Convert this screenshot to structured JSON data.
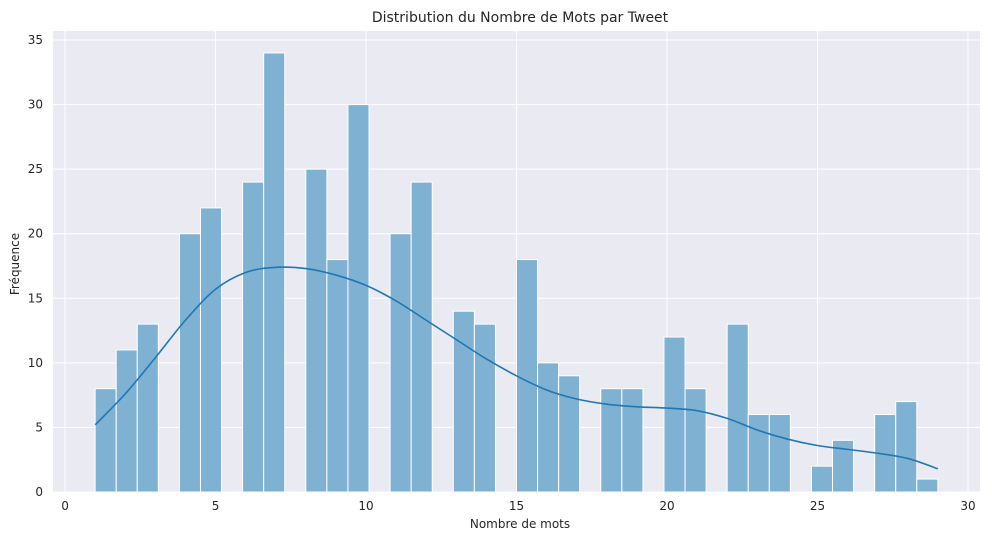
{
  "chart_data": {
    "type": "bar",
    "title": "Distribution du Nombre de Mots par Tweet",
    "xlabel": "Nombre de mots",
    "ylabel": "Fréquence",
    "xlim": [
      -0.4,
      30.4
    ],
    "ylim": [
      0,
      35.7
    ],
    "xticks": [
      0,
      5,
      10,
      15,
      20,
      25,
      30
    ],
    "yticks": [
      0,
      5,
      10,
      15,
      20,
      25,
      30,
      35
    ],
    "grid": true,
    "bin_width": 0.7,
    "bins": [
      {
        "x0": 1.0,
        "value": 8
      },
      {
        "x0": 1.7,
        "value": 11
      },
      {
        "x0": 2.4,
        "value": 13
      },
      {
        "x0": 3.8,
        "value": 20
      },
      {
        "x0": 4.5,
        "value": 22
      },
      {
        "x0": 5.9,
        "value": 24
      },
      {
        "x0": 6.6,
        "value": 34
      },
      {
        "x0": 8.0,
        "value": 25
      },
      {
        "x0": 8.7,
        "value": 18
      },
      {
        "x0": 9.4,
        "value": 30
      },
      {
        "x0": 10.8,
        "value": 20
      },
      {
        "x0": 11.5,
        "value": 24
      },
      {
        "x0": 12.9,
        "value": 14
      },
      {
        "x0": 13.6,
        "value": 13
      },
      {
        "x0": 15.0,
        "value": 18
      },
      {
        "x0": 15.7,
        "value": 10
      },
      {
        "x0": 16.4,
        "value": 9
      },
      {
        "x0": 17.8,
        "value": 8
      },
      {
        "x0": 18.5,
        "value": 8
      },
      {
        "x0": 19.9,
        "value": 12
      },
      {
        "x0": 20.6,
        "value": 8
      },
      {
        "x0": 22.0,
        "value": 13
      },
      {
        "x0": 22.7,
        "value": 6
      },
      {
        "x0": 23.4,
        "value": 6
      },
      {
        "x0": 24.8,
        "value": 2
      },
      {
        "x0": 25.5,
        "value": 4
      },
      {
        "x0": 26.9,
        "value": 6
      },
      {
        "x0": 27.6,
        "value": 7
      },
      {
        "x0": 28.3,
        "value": 1
      }
    ],
    "kde": [
      [
        1.0,
        5.2
      ],
      [
        2.0,
        7.6
      ],
      [
        3.0,
        10.4
      ],
      [
        4.0,
        13.3
      ],
      [
        5.0,
        15.7
      ],
      [
        6.0,
        17.0
      ],
      [
        7.0,
        17.4
      ],
      [
        8.0,
        17.3
      ],
      [
        9.0,
        16.8
      ],
      [
        10.0,
        16.0
      ],
      [
        11.0,
        14.8
      ],
      [
        12.0,
        13.3
      ],
      [
        13.0,
        11.8
      ],
      [
        14.0,
        10.3
      ],
      [
        15.0,
        9.0
      ],
      [
        16.0,
        7.9
      ],
      [
        17.0,
        7.2
      ],
      [
        18.0,
        6.8
      ],
      [
        19.0,
        6.6
      ],
      [
        20.0,
        6.5
      ],
      [
        21.0,
        6.3
      ],
      [
        22.0,
        5.7
      ],
      [
        23.0,
        4.8
      ],
      [
        24.0,
        4.1
      ],
      [
        25.0,
        3.6
      ],
      [
        26.0,
        3.3
      ],
      [
        27.0,
        3.0
      ],
      [
        28.0,
        2.6
      ],
      [
        29.0,
        1.8
      ]
    ],
    "colors": {
      "bar_fill": "#7fb1d3",
      "bar_edge": "#ffffff",
      "kde_line": "#1f77b4",
      "plot_background": "#eaeaf2",
      "grid": "#ffffff"
    }
  }
}
